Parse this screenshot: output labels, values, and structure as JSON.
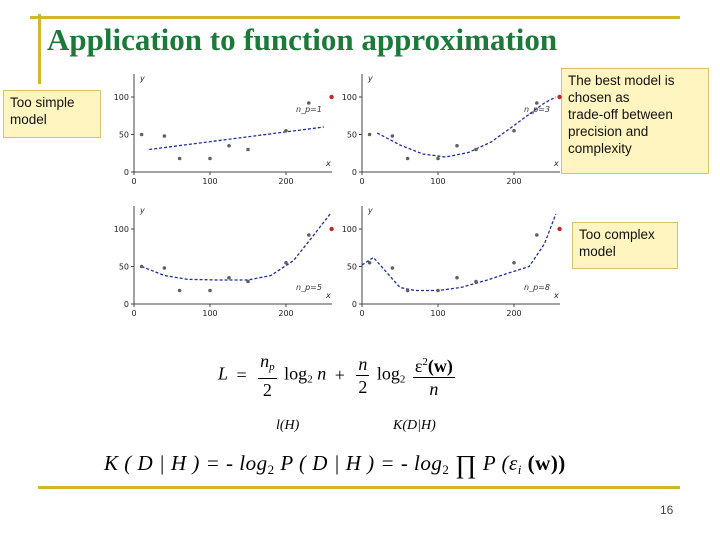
{
  "slide": {
    "title": "Application to function approximation",
    "page_number": "16",
    "accent_color": "#d4b728",
    "title_color": "#1a7a3a",
    "callout_bg": "#fff5c0"
  },
  "callouts": {
    "too_simple": "Too simple\nmodel",
    "best_model": "The best model is\nchosen as\ntrade-off between\nprecision and\ncomplexity",
    "too_complex": "Too complex\nmodel"
  },
  "plots": [
    {
      "np_label": "n_p=1",
      "y_label": "y",
      "x_label": "x",
      "xticks": [
        "0",
        "100",
        "200"
      ],
      "yticks": [
        "0",
        "50",
        "100"
      ]
    },
    {
      "np_label": "n_p=3",
      "y_label": "y",
      "x_label": "x",
      "xticks": [
        "0",
        "100",
        "200"
      ],
      "yticks": [
        "0",
        "50",
        "100"
      ]
    },
    {
      "np_label": "n_p=5",
      "y_label": "y",
      "x_label": "x",
      "xticks": [
        "0",
        "100",
        "200"
      ],
      "yticks": [
        "0",
        "50",
        "100"
      ]
    },
    {
      "np_label": "n_p=8",
      "y_label": "y",
      "x_label": "x",
      "xticks": [
        "0",
        "100",
        "200"
      ],
      "yticks": [
        "0",
        "50",
        "100"
      ]
    }
  ],
  "chart_data": [
    {
      "type": "scatter",
      "xlim": [
        0,
        250
      ],
      "ylim": [
        0,
        120
      ],
      "points": [
        [
          10,
          50
        ],
        [
          40,
          48
        ],
        [
          60,
          18
        ],
        [
          100,
          18
        ],
        [
          125,
          35
        ],
        [
          150,
          30
        ],
        [
          200,
          55
        ],
        [
          230,
          92
        ],
        [
          260,
          100
        ]
      ],
      "curve": [
        [
          20,
          30
        ],
        [
          250,
          60
        ]
      ]
    },
    {
      "type": "scatter",
      "xlim": [
        0,
        250
      ],
      "ylim": [
        0,
        120
      ],
      "points": [
        [
          10,
          50
        ],
        [
          40,
          48
        ],
        [
          60,
          18
        ],
        [
          100,
          18
        ],
        [
          125,
          35
        ],
        [
          150,
          30
        ],
        [
          200,
          55
        ],
        [
          230,
          92
        ],
        [
          260,
          100
        ]
      ],
      "curve": [
        [
          20,
          52
        ],
        [
          50,
          36
        ],
        [
          80,
          24
        ],
        [
          110,
          20
        ],
        [
          140,
          26
        ],
        [
          170,
          40
        ],
        [
          200,
          62
        ],
        [
          240,
          92
        ],
        [
          255,
          100
        ]
      ]
    },
    {
      "type": "scatter",
      "xlim": [
        0,
        250
      ],
      "ylim": [
        0,
        120
      ],
      "points": [
        [
          10,
          50
        ],
        [
          40,
          48
        ],
        [
          60,
          18
        ],
        [
          100,
          18
        ],
        [
          125,
          35
        ],
        [
          150,
          30
        ],
        [
          200,
          55
        ],
        [
          230,
          92
        ],
        [
          260,
          100
        ]
      ],
      "curve": [
        [
          10,
          50
        ],
        [
          40,
          38
        ],
        [
          70,
          33
        ],
        [
          110,
          32
        ],
        [
          150,
          32
        ],
        [
          180,
          38
        ],
        [
          210,
          58
        ],
        [
          235,
          90
        ],
        [
          258,
          120
        ]
      ]
    },
    {
      "type": "scatter",
      "xlim": [
        0,
        250
      ],
      "ylim": [
        0,
        120
      ],
      "points": [
        [
          10,
          55
        ],
        [
          40,
          48
        ],
        [
          60,
          18
        ],
        [
          100,
          18
        ],
        [
          125,
          35
        ],
        [
          150,
          30
        ],
        [
          200,
          55
        ],
        [
          230,
          92
        ],
        [
          260,
          100
        ]
      ],
      "curve": [
        [
          0,
          52
        ],
        [
          15,
          62
        ],
        [
          30,
          45
        ],
        [
          50,
          22
        ],
        [
          70,
          18
        ],
        [
          100,
          18
        ],
        [
          130,
          22
        ],
        [
          165,
          32
        ],
        [
          195,
          42
        ],
        [
          220,
          50
        ],
        [
          240,
          80
        ],
        [
          255,
          120
        ]
      ]
    }
  ],
  "formula1": {
    "lhs": "L",
    "eq": "=",
    "t1_num": "n",
    "t1_num_sub": "p",
    "t1_den": "2",
    "t1_log": "log",
    "t1_log_sub": "2",
    "t1_arg": "n",
    "plus": "+",
    "t2_num": "n",
    "t2_den": "2",
    "t2_log": "log",
    "t2_log_sub": "2",
    "t3_num_a": "ε",
    "t3_num_sup": "2",
    "t3_num_b": "(w)",
    "t3_den": "n",
    "label_lh": "l(H)",
    "label_kdh": "K(D|H)"
  },
  "formula2": {
    "k_part": "K ( D | H ) = - log",
    "log_sub1": "2",
    "p_part": " P ( D | H ) = - log",
    "log_sub2": "2",
    "prod": "∏",
    "tail_a": "P (ε",
    "tail_sub": "i",
    "tail_b": " (w))"
  }
}
